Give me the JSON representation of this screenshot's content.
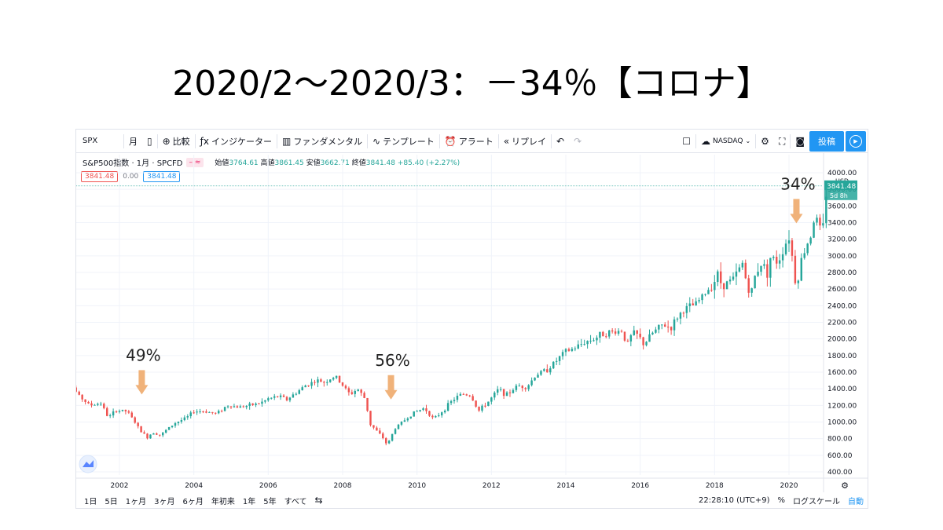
{
  "slide": {
    "title": "2020/2～2020/3：－34％【コロナ】"
  },
  "toolbar": {
    "symbol": "SPX",
    "interval": "月",
    "compare": "比較",
    "indicators": "インジケーター",
    "fundamentals": "ファンダメンタル",
    "templates": "テンプレート",
    "alert": "アラート",
    "replay": "リプレイ",
    "exchange": "NASDAQ",
    "post": "投稿"
  },
  "legend": {
    "name": "S&P500指数 · 1月 · SPCFD",
    "open_label": "始値",
    "open": "3764.61",
    "high_label": "高値",
    "high": "3861.45",
    "low_label": "安値",
    "low": "3662.71",
    "close_label": "終値",
    "close": "3841.48",
    "change": "+85.40 (+2.27%)",
    "bid": "3841.48",
    "spread": "0.00",
    "ask": "3841.48"
  },
  "chart_data": {
    "type": "candlestick",
    "x_unit": "year",
    "xlim": [
      2000.25,
      2021.4
    ],
    "ylim": [
      400,
      4100
    ],
    "y_scale": "linear",
    "y_ticks": [
      "400.00",
      "600.00",
      "800.00",
      "1000.00",
      "1200.00",
      "1400.00",
      "1600.00",
      "1800.00",
      "2000.00",
      "2200.00",
      "2400.00",
      "2600.00",
      "2800.00",
      "3000.00",
      "3200.00",
      "3400.00",
      "3600.00",
      "3800.00",
      "4000.00"
    ],
    "y_unit_label": "USD",
    "x_ticks": [
      "2002",
      "2004",
      "2006",
      "2008",
      "2010",
      "2012",
      "2014",
      "2016",
      "2018",
      "2020"
    ],
    "last_price": "3841.48",
    "countdown": "5d 8h",
    "up_color": "#26a69a",
    "down_color": "#ef5350",
    "close_path": [
      [
        2000.3,
        1370
      ],
      [
        2000.7,
        1450
      ],
      [
        2000.9,
        1320
      ],
      [
        2001.2,
        1200
      ],
      [
        2001.5,
        1230
      ],
      [
        2001.7,
        1050
      ],
      [
        2001.9,
        1140
      ],
      [
        2002.2,
        1130
      ],
      [
        2002.4,
        1010
      ],
      [
        2002.55,
        900
      ],
      [
        2002.75,
        815
      ],
      [
        2002.9,
        880
      ],
      [
        2003.1,
        840
      ],
      [
        2003.3,
        920
      ],
      [
        2003.5,
        990
      ],
      [
        2003.8,
        1050
      ],
      [
        2004.0,
        1130
      ],
      [
        2004.3,
        1130
      ],
      [
        2004.6,
        1100
      ],
      [
        2004.9,
        1200
      ],
      [
        2005.2,
        1180
      ],
      [
        2005.5,
        1200
      ],
      [
        2005.8,
        1230
      ],
      [
        2006.0,
        1280
      ],
      [
        2006.3,
        1310
      ],
      [
        2006.5,
        1270
      ],
      [
        2006.8,
        1370
      ],
      [
        2007.0,
        1440
      ],
      [
        2007.3,
        1500
      ],
      [
        2007.5,
        1480
      ],
      [
        2007.8,
        1550
      ],
      [
        2007.95,
        1470
      ],
      [
        2008.2,
        1330
      ],
      [
        2008.4,
        1400
      ],
      [
        2008.6,
        1280
      ],
      [
        2008.75,
        970
      ],
      [
        2008.9,
        900
      ],
      [
        2009.1,
        800
      ],
      [
        2009.2,
        720
      ],
      [
        2009.4,
        920
      ],
      [
        2009.6,
        1000
      ],
      [
        2009.9,
        1110
      ],
      [
        2010.2,
        1170
      ],
      [
        2010.45,
        1030
      ],
      [
        2010.7,
        1140
      ],
      [
        2010.95,
        1260
      ],
      [
        2011.2,
        1340
      ],
      [
        2011.45,
        1320
      ],
      [
        2011.65,
        1130
      ],
      [
        2011.95,
        1260
      ],
      [
        2012.2,
        1400
      ],
      [
        2012.4,
        1320
      ],
      [
        2012.7,
        1440
      ],
      [
        2012.95,
        1420
      ],
      [
        2013.2,
        1570
      ],
      [
        2013.5,
        1630
      ],
      [
        2013.8,
        1760
      ],
      [
        2013.95,
        1840
      ],
      [
        2014.2,
        1880
      ],
      [
        2014.5,
        1960
      ],
      [
        2014.8,
        2010
      ],
      [
        2014.95,
        2060
      ],
      [
        2015.2,
        2080
      ],
      [
        2015.5,
        2100
      ],
      [
        2015.65,
        1930
      ],
      [
        2015.8,
        2080
      ],
      [
        2015.95,
        2040
      ],
      [
        2016.1,
        1930
      ],
      [
        2016.3,
        2060
      ],
      [
        2016.6,
        2170
      ],
      [
        2016.85,
        2130
      ],
      [
        2016.95,
        2240
      ],
      [
        2017.2,
        2360
      ],
      [
        2017.5,
        2420
      ],
      [
        2017.8,
        2580
      ],
      [
        2017.99,
        2680
      ],
      [
        2018.05,
        2820
      ],
      [
        2018.2,
        2640
      ],
      [
        2018.5,
        2720
      ],
      [
        2018.75,
        2910
      ],
      [
        2018.85,
        2700
      ],
      [
        2018.97,
        2510
      ],
      [
        2019.1,
        2790
      ],
      [
        2019.3,
        2940
      ],
      [
        2019.4,
        2750
      ],
      [
        2019.5,
        2980
      ],
      [
        2019.7,
        2920
      ],
      [
        2019.9,
        3140
      ],
      [
        2020.0,
        3230
      ],
      [
        2020.1,
        2950
      ],
      [
        2020.2,
        2580
      ],
      [
        2020.3,
        2910
      ],
      [
        2020.45,
        3100
      ],
      [
        2020.6,
        3270
      ],
      [
        2020.7,
        3500
      ],
      [
        2020.8,
        3360
      ],
      [
        2020.9,
        3270
      ],
      [
        2021.0,
        3750
      ],
      [
        2021.08,
        3840
      ]
    ],
    "annotations": [
      {
        "label": "49%",
        "x": 2002.6,
        "price": 1360
      },
      {
        "label": "56%",
        "x": 2009.3,
        "price": 1300
      },
      {
        "label": "34%",
        "x": 2020.2,
        "price": 3420
      }
    ],
    "annotation_color": "#f0b27a"
  },
  "timeframes": [
    "1日",
    "5日",
    "1ヶ月",
    "3ヶ月",
    "6ヶ月",
    "年初来",
    "1年",
    "5年",
    "すべて"
  ],
  "status": {
    "clock": "22:28:10 (UTC+9)",
    "percent": "%",
    "log_scale": "ログスケール",
    "auto": "自動"
  }
}
